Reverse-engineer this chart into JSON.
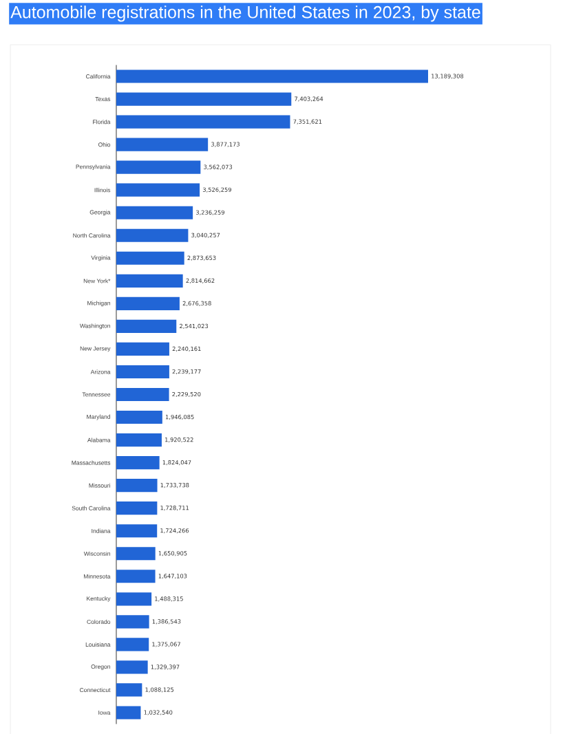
{
  "chart_data": {
    "type": "bar",
    "orientation": "horizontal",
    "title": "Automobile registrations in the United States in 2023, by state",
    "categories": [
      "California",
      "Texas",
      "Florida",
      "Ohio",
      "Pennsylvania",
      "Illinois",
      "Georgia",
      "North Carolina",
      "Virginia",
      "New York*",
      "Michigan",
      "Washington",
      "New Jersey",
      "Arizona",
      "Tennessee",
      "Maryland",
      "Alabama",
      "Massachusetts",
      "Missouri",
      "South Carolina",
      "Indiana",
      "Wisconsin",
      "Minnesota",
      "Kentucky",
      "Colorado",
      "Louisiana",
      "Oregon",
      "Connecticut",
      "Iowa"
    ],
    "values": [
      13189308,
      7403264,
      7351621,
      3877173,
      3562073,
      3526259,
      3236259,
      3040257,
      2873653,
      2814662,
      2676358,
      2541023,
      2240161,
      2239177,
      2229520,
      1946085,
      1920522,
      1824047,
      1733738,
      1728711,
      1724266,
      1650905,
      1647103,
      1488315,
      1386543,
      1375067,
      1329397,
      1088125,
      1032540
    ],
    "value_labels": [
      "13,189,308",
      "7,403,264",
      "7,351,621",
      "3,877,173",
      "3,562,073",
      "3,526,259",
      "3,236,259",
      "3,040,257",
      "2,873,653",
      "2,814,662",
      "2,676,358",
      "2,541,023",
      "2,240,161",
      "2,239,177",
      "2,229,520",
      "1,946,085",
      "1,920,522",
      "1,824,047",
      "1,733,738",
      "1,728,711",
      "1,724,266",
      "1,650,905",
      "1,647,103",
      "1,488,315",
      "1,386,543",
      "1,375,067",
      "1,329,397",
      "1,088,125",
      "1,032,540"
    ],
    "color": "#2165d6",
    "tick_labels": "y"
  }
}
